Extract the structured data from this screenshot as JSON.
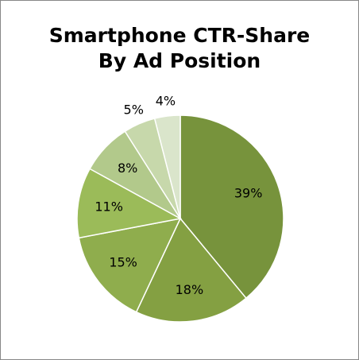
{
  "chart_data": {
    "type": "pie",
    "title": "Smartphone CTR-Share By Ad Position",
    "values": [
      39,
      18,
      15,
      11,
      8,
      5,
      4
    ],
    "value_labels": [
      "39%",
      "18%",
      "15%",
      "11%",
      "8%",
      "5%",
      "4%"
    ],
    "colors": [
      "#77933c",
      "#84a042",
      "#8fad4d",
      "#9bbb59",
      "#b2c98b",
      "#c7d8ab",
      "#dae5cb"
    ]
  }
}
